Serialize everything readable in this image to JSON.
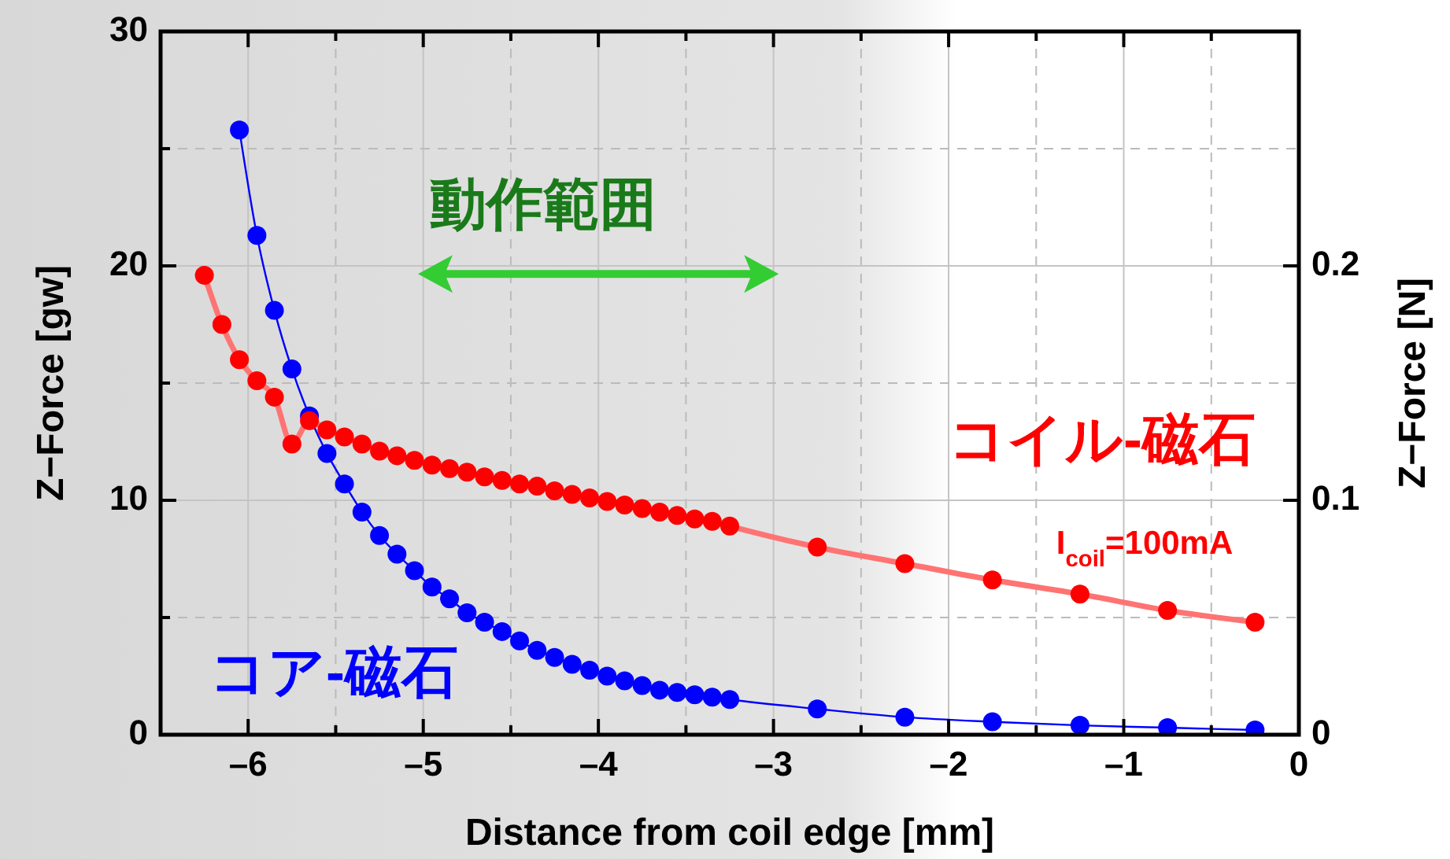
{
  "chart_data": {
    "type": "line",
    "xlabel": "Distance from coil edge [mm]",
    "ylabel": "Z−Force  [gw]",
    "y2label": "Z−Force  [N]",
    "xlim": [
      -6.5,
      0
    ],
    "xticks": [
      {
        "value": -6,
        "label": "–6"
      },
      {
        "value": -5.5,
        "label": null
      },
      {
        "value": -5,
        "label": "–5"
      },
      {
        "value": -4.5,
        "label": null
      },
      {
        "value": -4,
        "label": "–4"
      },
      {
        "value": -3.5,
        "label": null
      },
      {
        "value": -3,
        "label": "–3"
      },
      {
        "value": -2.5,
        "label": null
      },
      {
        "value": -2,
        "label": "–2"
      },
      {
        "value": -1.5,
        "label": null
      },
      {
        "value": -1,
        "label": "–1"
      },
      {
        "value": -0.5,
        "label": null
      },
      {
        "value": 0,
        "label": "0"
      }
    ],
    "ylim": [
      0,
      30
    ],
    "yticks": [
      0,
      {
        "value": 5,
        "label": null
      },
      10,
      {
        "value": 15,
        "label": null
      },
      20,
      {
        "value": 25,
        "label": null
      },
      30
    ],
    "y2lim": [
      0,
      0.3
    ],
    "y2ticks": [
      0,
      0.1,
      0.2
    ],
    "grid": true,
    "marker": "circle",
    "annotations": [
      "動作範囲",
      "I$_{coil}$=100mA"
    ],
    "series": [
      {
        "name": "コイル-磁石",
        "color": "#ff0000",
        "x": [
          -6.25,
          -6.15,
          -6.05,
          -5.95,
          -5.85,
          -5.75,
          -5.65,
          -5.55,
          -5.45,
          -5.35,
          -5.25,
          -5.15,
          -5.05,
          -4.95,
          -4.85,
          -4.75,
          -4.65,
          -4.55,
          -4.45,
          -4.35,
          -4.25,
          -4.15,
          -4.05,
          -3.95,
          -3.85,
          -3.75,
          -3.65,
          -3.55,
          -3.45,
          -3.35,
          -3.25,
          -2.75,
          -2.25,
          -1.75,
          -1.25,
          -0.75,
          -0.25
        ],
        "values": [
          19.6,
          17.5,
          16.0,
          15.1,
          14.4,
          12.4,
          13.4,
          13.0,
          12.7,
          12.4,
          12.1,
          11.9,
          11.7,
          11.5,
          11.35,
          11.2,
          11.0,
          10.85,
          10.7,
          10.6,
          10.4,
          10.25,
          10.1,
          9.95,
          9.8,
          9.65,
          9.5,
          9.35,
          9.2,
          9.1,
          8.9,
          8.0,
          7.3,
          6.6,
          6.0,
          5.3,
          4.8
        ]
      },
      {
        "name": "コア-磁石",
        "color": "#0000ff",
        "x": [
          -6.05,
          -5.95,
          -5.85,
          -5.75,
          -5.65,
          -5.55,
          -5.45,
          -5.35,
          -5.25,
          -5.15,
          -5.05,
          -4.95,
          -4.85,
          -4.75,
          -4.65,
          -4.55,
          -4.45,
          -4.35,
          -4.25,
          -4.15,
          -4.05,
          -3.95,
          -3.85,
          -3.75,
          -3.65,
          -3.55,
          -3.45,
          -3.35,
          -3.25,
          -2.75,
          -2.25,
          -1.75,
          -1.25,
          -0.75,
          -0.25
        ],
        "values": [
          25.8,
          21.3,
          18.1,
          15.6,
          13.6,
          12.0,
          10.7,
          9.5,
          8.5,
          7.7,
          7.0,
          6.3,
          5.8,
          5.2,
          4.8,
          4.4,
          4.0,
          3.6,
          3.3,
          3.0,
          2.75,
          2.5,
          2.3,
          2.1,
          1.9,
          1.8,
          1.7,
          1.6,
          1.5,
          1.1,
          0.75,
          0.55,
          0.4,
          0.3,
          0.2
        ]
      }
    ]
  }
}
